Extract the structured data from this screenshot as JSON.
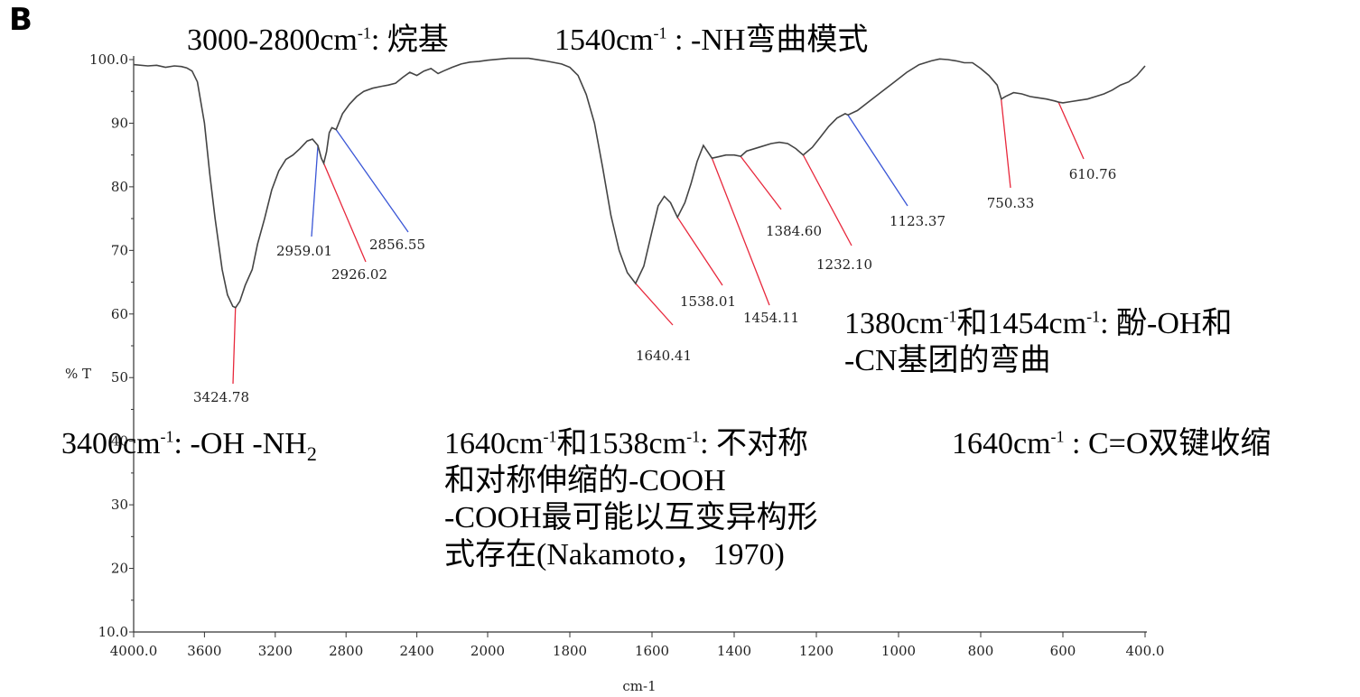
{
  "panel_label": "B",
  "chart_data": {
    "type": "line",
    "title": "",
    "xlabel": "cm-1",
    "ylabel": "% T",
    "xlim": [
      4000,
      400
    ],
    "ylim": [
      10,
      100
    ],
    "x_ticks": [
      4000,
      3600,
      3200,
      2800,
      2400,
      2000,
      1800,
      1600,
      1400,
      1200,
      1000,
      800,
      600,
      400
    ],
    "x_tick_labels": [
      "4000.0",
      "3600",
      "3200",
      "2800",
      "2400",
      "2000",
      "1800",
      "1600",
      "1400",
      "1200",
      "1000",
      "800",
      "600",
      "400.0"
    ],
    "y_ticks": [
      10,
      20,
      30,
      40,
      50,
      60,
      70,
      80,
      90,
      100
    ],
    "y_tick_labels": [
      "10.0",
      "20",
      "30",
      "40",
      "50",
      "60",
      "70",
      "80",
      "90",
      "100.0"
    ],
    "series": [
      {
        "color": "#444444",
        "x": [
          4000,
          3920,
          3870,
          3820,
          3770,
          3730,
          3700,
          3670,
          3640,
          3600,
          3570,
          3540,
          3500,
          3470,
          3440,
          3424,
          3400,
          3370,
          3330,
          3300,
          3260,
          3220,
          3180,
          3140,
          3100,
          3060,
          3020,
          2990,
          2959,
          2940,
          2926,
          2910,
          2895,
          2880,
          2856,
          2820,
          2780,
          2740,
          2700,
          2650,
          2600,
          2560,
          2520,
          2480,
          2440,
          2400,
          2360,
          2320,
          2280,
          2250,
          2200,
          2150,
          2100,
          2050,
          2000,
          1950,
          1900,
          1860,
          1820,
          1800,
          1780,
          1760,
          1740,
          1720,
          1700,
          1680,
          1660,
          1640,
          1620,
          1600,
          1585,
          1570,
          1555,
          1538,
          1520,
          1505,
          1490,
          1475,
          1454,
          1440,
          1420,
          1400,
          1384,
          1370,
          1340,
          1310,
          1290,
          1270,
          1250,
          1232,
          1210,
          1190,
          1170,
          1150,
          1130,
          1123,
          1100,
          1070,
          1040,
          1010,
          980,
          950,
          920,
          900,
          880,
          860,
          840,
          820,
          800,
          780,
          760,
          750,
          740,
          720,
          700,
          680,
          660,
          640,
          620,
          610,
          600,
          580,
          560,
          540,
          520,
          500,
          480,
          460,
          440,
          420,
          400
        ],
        "y": [
          99.2,
          99.0,
          99.1,
          98.8,
          99.0,
          98.9,
          98.7,
          98.2,
          96.5,
          90.0,
          82.0,
          75.0,
          67.0,
          63.0,
          61.2,
          61.0,
          62.0,
          64.5,
          67.0,
          71.0,
          75.0,
          79.5,
          82.5,
          84.3,
          85.0,
          86.0,
          87.2,
          87.5,
          86.5,
          84.5,
          83.7,
          85.5,
          88.5,
          89.3,
          89.0,
          91.5,
          93.0,
          94.2,
          95.0,
          95.5,
          95.8,
          96.0,
          96.3,
          97.2,
          98.0,
          97.5,
          98.2,
          98.6,
          97.8,
          98.2,
          98.8,
          99.3,
          99.6,
          99.7,
          99.9,
          100.2,
          100.2,
          99.8,
          99.3,
          98.8,
          97.5,
          94.5,
          90.0,
          83.0,
          75.5,
          70.0,
          66.5,
          64.8,
          67.5,
          73.0,
          77.0,
          78.5,
          77.5,
          75.2,
          77.5,
          80.5,
          84.0,
          86.5,
          84.5,
          84.7,
          85.0,
          85.0,
          84.8,
          85.6,
          86.2,
          86.8,
          87.0,
          86.8,
          86.0,
          85.0,
          86.2,
          87.8,
          89.5,
          90.8,
          91.5,
          91.3,
          92.0,
          93.5,
          95.0,
          96.5,
          98.0,
          99.2,
          99.8,
          100.1,
          100.0,
          99.8,
          99.5,
          99.5,
          98.6,
          97.5,
          96.0,
          93.8,
          94.2,
          94.8,
          94.6,
          94.2,
          94.0,
          93.8,
          93.5,
          93.3,
          93.2,
          93.4,
          93.6,
          93.8,
          94.2,
          94.6,
          95.2,
          96.0,
          96.5,
          97.5,
          99.0
        ]
      }
    ],
    "peaks": [
      {
        "label": "3424.78",
        "x": 3424.78,
        "color": "#e8283c"
      },
      {
        "label": "2959.01",
        "x": 2959.01,
        "color": "#3a56d6"
      },
      {
        "label": "2926.02",
        "x": 2926.02,
        "color": "#e8283c"
      },
      {
        "label": "2856.55",
        "x": 2856.55,
        "color": "#3a56d6"
      },
      {
        "label": "1640.41",
        "x": 1640.41,
        "color": "#e8283c"
      },
      {
        "label": "1538.01",
        "x": 1538.01,
        "color": "#e8283c"
      },
      {
        "label": "1454.11",
        "x": 1454.11,
        "color": "#e8283c"
      },
      {
        "label": "1384.60",
        "x": 1384.6,
        "color": "#e8283c"
      },
      {
        "label": "1232.10",
        "x": 1232.1,
        "color": "#e8283c"
      },
      {
        "label": "1123.37",
        "x": 1123.37,
        "color": "#3a56d6"
      },
      {
        "label": "750.33",
        "x": 750.33,
        "color": "#e8283c"
      },
      {
        "label": "610.76",
        "x": 610.76,
        "color": "#e8283c"
      }
    ]
  },
  "annotations": {
    "alkyl": {
      "pre": "3000-2800cm",
      "sup": "-1",
      "post": ": 烷基"
    },
    "nh_bend": {
      "pre": "1540cm",
      "sup": "-1",
      "post": " : -NH弯曲模式"
    },
    "oh_nh2": {
      "pre": "3400cm",
      "sup": "-1",
      "mid": ": -OH -NH",
      "sub": "2"
    },
    "phenol_1": {
      "pre": "1380cm",
      "sup1": "-1",
      "mid": "和1454cm",
      "sup2": "-1",
      "post": ": 酚-OH和"
    },
    "phenol_2": "-CN基团的弯曲",
    "cooh_1": {
      "pre": "1640cm",
      "sup1": "-1",
      "mid": "和1538cm",
      "sup2": "-1",
      "post": ": 不对称"
    },
    "cooh_2": "和对称伸缩的-COOH",
    "cooh_3": "-COOH最可能以互变异构形",
    "cooh_4": "式存在(Nakamoto， 1970)",
    "co": {
      "pre": "1640cm",
      "sup": "-1",
      "post": " : C=O双键收缩"
    }
  }
}
